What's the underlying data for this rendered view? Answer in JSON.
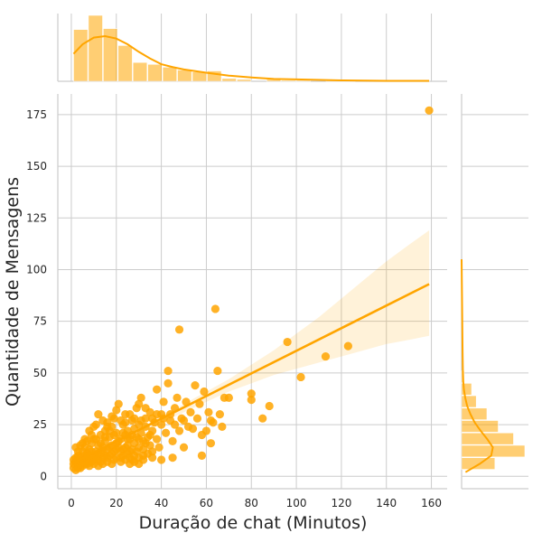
{
  "chart_data": {
    "type": "scatter",
    "title": "",
    "xlabel": "Duração de chat (Minutos)",
    "ylabel": "Quantidade de Mensagens",
    "xlim": [
      -6,
      167
    ],
    "ylim": [
      -6,
      185
    ],
    "x_ticks": [
      "0",
      "20",
      "40",
      "60",
      "80",
      "100",
      "120",
      "140",
      "160"
    ],
    "y_ticks": [
      "0",
      "25",
      "50",
      "75",
      "100",
      "125",
      "150",
      "175"
    ],
    "grid": true,
    "legend": "none",
    "color": "#FFA500",
    "points": [
      [
        1,
        8
      ],
      [
        1,
        6
      ],
      [
        2,
        3
      ],
      [
        2,
        9
      ],
      [
        3,
        5
      ],
      [
        3,
        10
      ],
      [
        4,
        7
      ],
      [
        4,
        4
      ],
      [
        5,
        12
      ],
      [
        5,
        8
      ],
      [
        6,
        6
      ],
      [
        6,
        14
      ],
      [
        7,
        9
      ],
      [
        7,
        11
      ],
      [
        8,
        5
      ],
      [
        8,
        13
      ],
      [
        9,
        16
      ],
      [
        9,
        7
      ],
      [
        10,
        10
      ],
      [
        10,
        18
      ],
      [
        11,
        12
      ],
      [
        11,
        25
      ],
      [
        12,
        8
      ],
      [
        12,
        15
      ],
      [
        13,
        20
      ],
      [
        13,
        11
      ],
      [
        14,
        14
      ],
      [
        14,
        9
      ],
      [
        15,
        22
      ],
      [
        15,
        17
      ],
      [
        16,
        13
      ],
      [
        16,
        26
      ],
      [
        17,
        10
      ],
      [
        17,
        19
      ],
      [
        18,
        24
      ],
      [
        18,
        15
      ],
      [
        19,
        12
      ],
      [
        19,
        28
      ],
      [
        20,
        16
      ],
      [
        20,
        21
      ],
      [
        21,
        14
      ],
      [
        21,
        35
      ],
      [
        22,
        18
      ],
      [
        22,
        9
      ],
      [
        23,
        25
      ],
      [
        23,
        13
      ],
      [
        24,
        20
      ],
      [
        24,
        30
      ],
      [
        25,
        15
      ],
      [
        25,
        22
      ],
      [
        26,
        18
      ],
      [
        26,
        12
      ],
      [
        27,
        27
      ],
      [
        27,
        8
      ],
      [
        28,
        23
      ],
      [
        28,
        16
      ],
      [
        29,
        33
      ],
      [
        29,
        19
      ],
      [
        30,
        14
      ],
      [
        30,
        25
      ],
      [
        31,
        21
      ],
      [
        31,
        38
      ],
      [
        32,
        17
      ],
      [
        32,
        10
      ],
      [
        33,
        28
      ],
      [
        33,
        24
      ],
      [
        34,
        19
      ],
      [
        35,
        31
      ],
      [
        35,
        15
      ],
      [
        36,
        22
      ],
      [
        37,
        26
      ],
      [
        38,
        18
      ],
      [
        38,
        42
      ],
      [
        39,
        14
      ],
      [
        40,
        30
      ],
      [
        40,
        25
      ],
      [
        41,
        36
      ],
      [
        42,
        21
      ],
      [
        43,
        45
      ],
      [
        43,
        51
      ],
      [
        44,
        27
      ],
      [
        45,
        17
      ],
      [
        46,
        33
      ],
      [
        47,
        38
      ],
      [
        48,
        22
      ],
      [
        48,
        71
      ],
      [
        49,
        28
      ],
      [
        50,
        14
      ],
      [
        51,
        36
      ],
      [
        52,
        24
      ],
      [
        53,
        31
      ],
      [
        55,
        44
      ],
      [
        56,
        28
      ],
      [
        57,
        35
      ],
      [
        58,
        10
      ],
      [
        59,
        41
      ],
      [
        60,
        22
      ],
      [
        61,
        31
      ],
      [
        62,
        16
      ],
      [
        63,
        26
      ],
      [
        64,
        81
      ],
      [
        65,
        51
      ],
      [
        66,
        30
      ],
      [
        67,
        24
      ],
      [
        68,
        38
      ],
      [
        70,
        38
      ],
      [
        80,
        40
      ],
      [
        80,
        37
      ],
      [
        85,
        28
      ],
      [
        88,
        34
      ],
      [
        96,
        65
      ],
      [
        102,
        48
      ],
      [
        113,
        58
      ],
      [
        123,
        63
      ],
      [
        159,
        177
      ],
      [
        3,
        12
      ],
      [
        4,
        9
      ],
      [
        6,
        10
      ],
      [
        8,
        8
      ],
      [
        9,
        12
      ],
      [
        10,
        6
      ],
      [
        11,
        9
      ],
      [
        12,
        11
      ],
      [
        13,
        7
      ],
      [
        14,
        12
      ],
      [
        15,
        10
      ],
      [
        16,
        9
      ],
      [
        17,
        14
      ],
      [
        18,
        11
      ],
      [
        19,
        8
      ],
      [
        20,
        13
      ],
      [
        22,
        12
      ],
      [
        23,
        10
      ],
      [
        24,
        14
      ],
      [
        25,
        11
      ],
      [
        26,
        9
      ],
      [
        27,
        13
      ],
      [
        28,
        10
      ],
      [
        29,
        12
      ],
      [
        30,
        9
      ],
      [
        32,
        13
      ],
      [
        34,
        11
      ],
      [
        36,
        12
      ],
      [
        5,
        16
      ],
      [
        7,
        17
      ],
      [
        9,
        20
      ],
      [
        11,
        18
      ],
      [
        13,
        16
      ],
      [
        15,
        19
      ],
      [
        17,
        22
      ],
      [
        19,
        20
      ],
      [
        21,
        17
      ],
      [
        23,
        21
      ],
      [
        25,
        18
      ],
      [
        27,
        20
      ],
      [
        30,
        18
      ],
      [
        33,
        16
      ],
      [
        35,
        20
      ],
      [
        2,
        14
      ],
      [
        4,
        15
      ],
      [
        6,
        18
      ],
      [
        8,
        22
      ],
      [
        10,
        24
      ],
      [
        12,
        30
      ],
      [
        14,
        27
      ],
      [
        16,
        24
      ],
      [
        18,
        29
      ],
      [
        20,
        32
      ],
      [
        22,
        27
      ],
      [
        24,
        26
      ],
      [
        26,
        30
      ],
      [
        28,
        28
      ],
      [
        30,
        35
      ],
      [
        31,
        27
      ],
      [
        33,
        33
      ],
      [
        36,
        28
      ],
      [
        38,
        30
      ],
      [
        41,
        28
      ],
      [
        44,
        30
      ],
      [
        46,
        25
      ],
      [
        50,
        27
      ],
      [
        54,
        23
      ],
      [
        58,
        20
      ],
      [
        62,
        27
      ],
      [
        1,
        4
      ],
      [
        2,
        7
      ],
      [
        3,
        4
      ],
      [
        4,
        6
      ],
      [
        5,
        5
      ],
      [
        6,
        8
      ],
      [
        7,
        6
      ],
      [
        8,
        10
      ],
      [
        10,
        8
      ],
      [
        12,
        5
      ],
      [
        14,
        6
      ],
      [
        16,
        7
      ],
      [
        18,
        6
      ],
      [
        20,
        9
      ],
      [
        22,
        7
      ],
      [
        24,
        8
      ],
      [
        26,
        6
      ],
      [
        28,
        7
      ],
      [
        30,
        6
      ],
      [
        32,
        8
      ],
      [
        36,
        9
      ],
      [
        40,
        8
      ],
      [
        45,
        9
      ]
    ],
    "regression": {
      "x0": 0,
      "y0": 6,
      "x1": 159,
      "y1": 93
    },
    "confidence_band": {
      "x": [
        0,
        10,
        20,
        30,
        40,
        50,
        60,
        70,
        80,
        90,
        100,
        110,
        120,
        130,
        140,
        150,
        159
      ],
      "lower": [
        3,
        9,
        15,
        21,
        26,
        31,
        36,
        41,
        45,
        49,
        52,
        55,
        58,
        61,
        64,
        66,
        68
      ],
      "upper": [
        9,
        13,
        18,
        23,
        29,
        35,
        41,
        47,
        54,
        61,
        69,
        77,
        86,
        95,
        104,
        112,
        119
      ]
    },
    "x_histogram": {
      "bin_edges": [
        1,
        7.6,
        14.2,
        20.8,
        27.4,
        34,
        40.6,
        47.2,
        53.8,
        60.4,
        67,
        73.6,
        80.2,
        86.8,
        93.4,
        100,
        106.6,
        113.2,
        119.8,
        126.4,
        133,
        139.6,
        146.2,
        152.8,
        159.4
      ],
      "counts": [
        55,
        70,
        56,
        38,
        20,
        18,
        15,
        12,
        10,
        11,
        3,
        2,
        0,
        2,
        1,
        1,
        0,
        1,
        1,
        0,
        0,
        0,
        0,
        1
      ]
    },
    "x_kde": {
      "x": [
        1,
        5,
        10,
        15,
        20,
        25,
        30,
        35,
        40,
        45,
        50,
        60,
        70,
        80,
        90,
        100,
        120,
        140,
        159
      ],
      "y": [
        0.58,
        0.78,
        0.92,
        0.95,
        0.9,
        0.78,
        0.62,
        0.48,
        0.36,
        0.3,
        0.25,
        0.18,
        0.12,
        0.08,
        0.05,
        0.04,
        0.02,
        0.01,
        0.01
      ]
    },
    "y_histogram": {
      "bin_edges": [
        3,
        9,
        15,
        21,
        27,
        33,
        39,
        45,
        51
      ],
      "counts": [
        50,
        95,
        78,
        55,
        38,
        22,
        15,
        4
      ]
    },
    "y_kde": {
      "y": [
        2,
        6,
        10,
        14,
        18,
        22,
        26,
        30,
        34,
        38,
        42,
        46,
        50,
        60,
        75,
        90,
        105
      ],
      "x": [
        0.12,
        0.55,
        0.9,
        0.95,
        0.78,
        0.58,
        0.4,
        0.27,
        0.17,
        0.11,
        0.07,
        0.05,
        0.04,
        0.03,
        0.02,
        0.01,
        0.0
      ]
    }
  }
}
